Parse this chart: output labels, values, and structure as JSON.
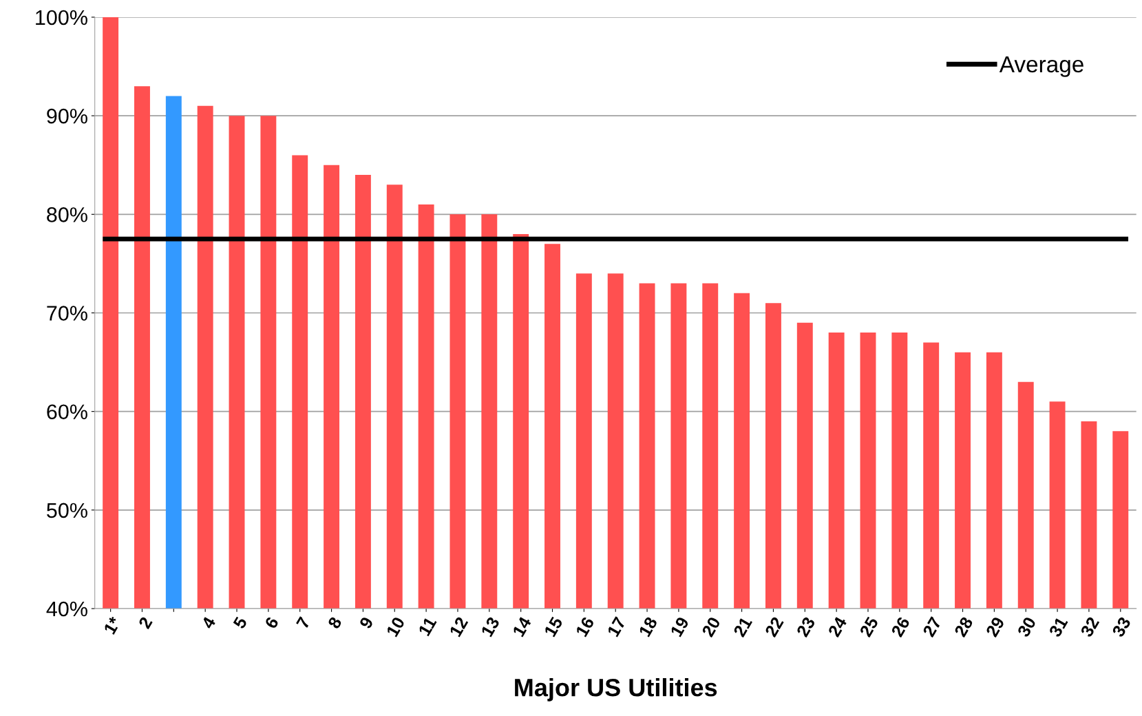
{
  "chart_data": {
    "type": "bar",
    "xlabel": "Major US Utilities",
    "categories": [
      "1*",
      "2",
      null,
      "4",
      "5",
      "6",
      "7",
      "8",
      "9",
      "10",
      "11",
      "12",
      "13",
      "14",
      "15",
      "16",
      "17",
      "18",
      "19",
      "20",
      "21",
      "22",
      "23",
      "24",
      "25",
      "26",
      "27",
      "28",
      "29",
      "30",
      "31",
      "32",
      "33"
    ],
    "values": [
      100,
      93,
      92,
      91,
      90,
      90,
      86,
      85,
      84,
      83,
      81,
      80,
      80,
      78,
      77,
      74,
      74,
      73,
      73,
      73,
      72,
      71,
      69,
      68,
      68,
      68,
      67,
      66,
      66,
      63,
      61,
      59,
      58
    ],
    "colors": [
      "#ff5050",
      "#ff5050",
      "#3399ff",
      "#ff5050",
      "#ff5050",
      "#ff5050",
      "#ff5050",
      "#ff5050",
      "#ff5050",
      "#ff5050",
      "#ff5050",
      "#ff5050",
      "#ff5050",
      "#ff5050",
      "#ff5050",
      "#ff5050",
      "#ff5050",
      "#ff5050",
      "#ff5050",
      "#ff5050",
      "#ff5050",
      "#ff5050",
      "#ff5050",
      "#ff5050",
      "#ff5050",
      "#ff5050",
      "#ff5050",
      "#ff5050",
      "#ff5050",
      "#ff5050",
      "#ff5050",
      "#ff5050",
      "#ff5050"
    ],
    "ylim": [
      40,
      100
    ],
    "yticks": [
      {
        "value": 40,
        "label": "40%"
      },
      {
        "value": 50,
        "label": "50%"
      },
      {
        "value": 60,
        "label": "60%"
      },
      {
        "value": 70,
        "label": "70%"
      },
      {
        "value": 80,
        "label": "80%"
      },
      {
        "value": 90,
        "label": "90%"
      },
      {
        "value": 100,
        "label": "100%"
      }
    ],
    "ref_lines": [
      {
        "axis": "y",
        "value": 77.5,
        "label": "Average",
        "color": "#000000"
      }
    ],
    "grid": "y",
    "legend": "top right"
  }
}
